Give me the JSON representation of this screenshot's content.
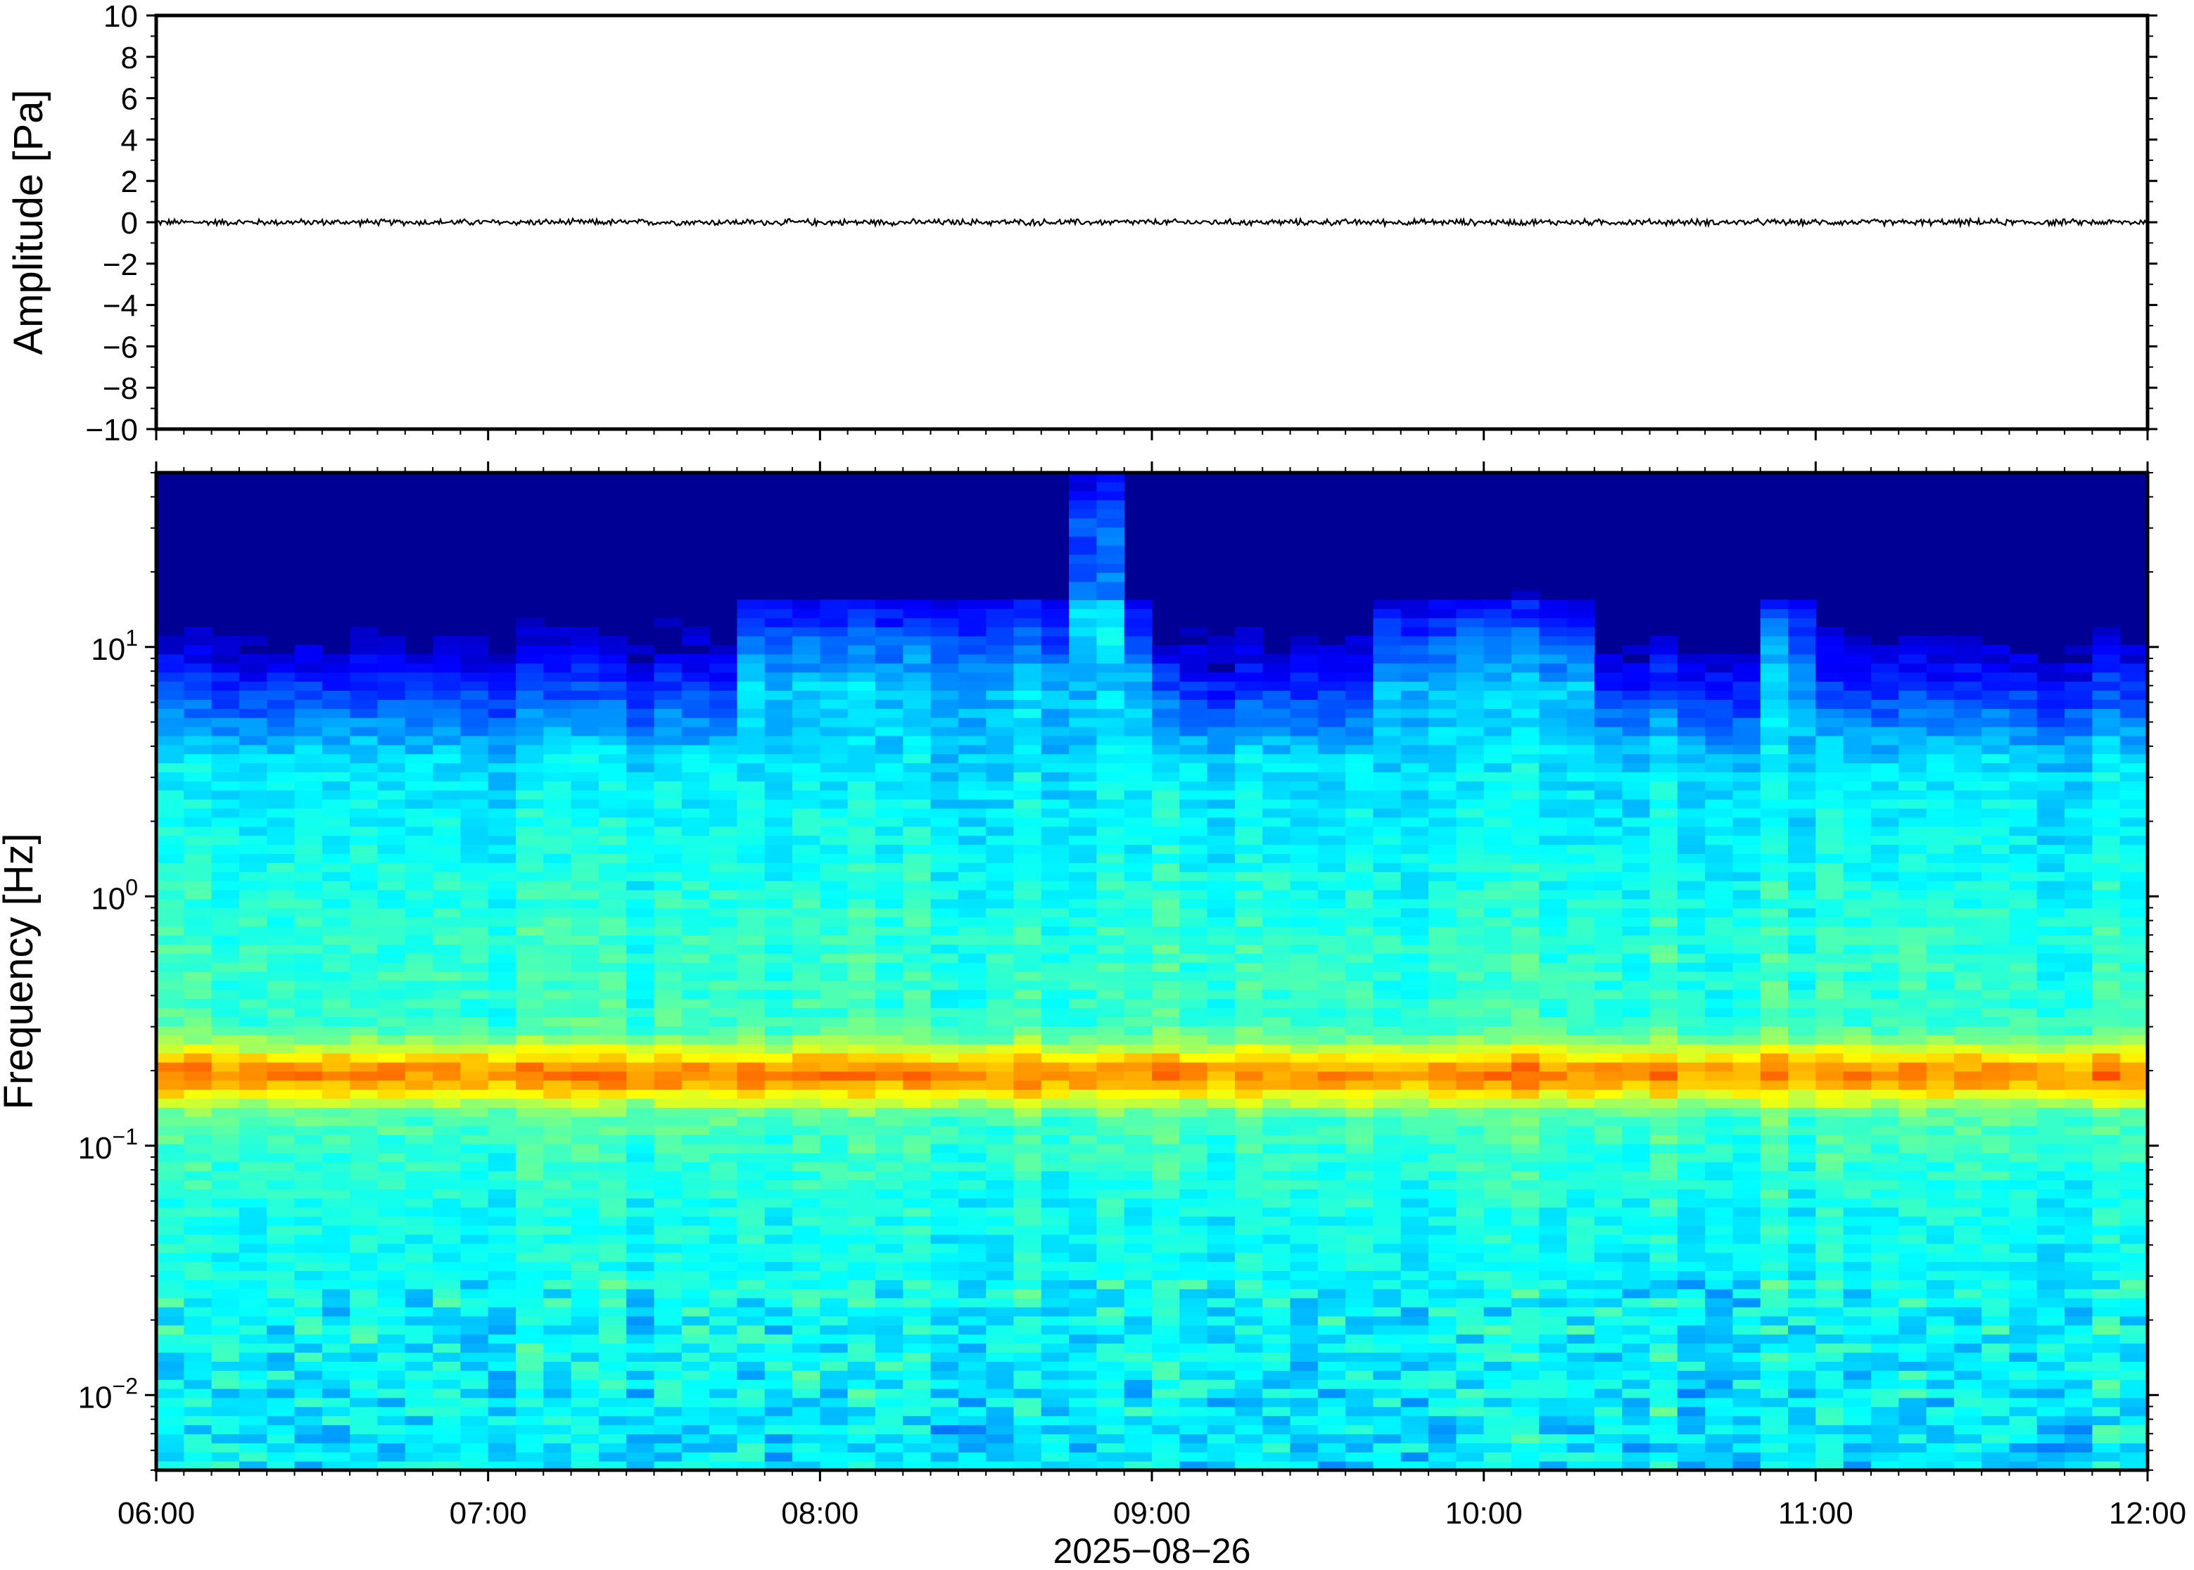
{
  "chart_data": [
    {
      "type": "line",
      "title": "",
      "ylabel": "Amplitude [Pa]",
      "ylim": [
        -10,
        10
      ],
      "yticks": [
        10,
        8,
        6,
        4,
        2,
        0,
        -2,
        -4,
        -6,
        -8,
        -10
      ],
      "ytick_labels": [
        "10",
        "8",
        "6",
        "4",
        "2",
        "0",
        "−2",
        "−4",
        "−6",
        "−8",
        "−10"
      ],
      "xlim": [
        "06:00",
        "12:00"
      ],
      "series": [
        {
          "color": "#000000",
          "x": [
            "06:00",
            "07:00",
            "08:00",
            "09:00",
            "10:00",
            "11:00",
            "12:00"
          ],
          "values": [
            0,
            0,
            0,
            0,
            0,
            0,
            0
          ],
          "noise_amplitude": 0.12
        }
      ],
      "grid": false
    },
    {
      "type": "heatmap",
      "title": "",
      "ylabel": "Frequency [Hz]",
      "yscale": "log",
      "ylim": [
        0.005,
        50
      ],
      "yticks": [
        10,
        1,
        0.1,
        0.01
      ],
      "ytick_labels": [
        {
          "base": "10",
          "exp": "1"
        },
        {
          "base": "10",
          "exp": "0"
        },
        {
          "base": "10",
          "exp": "−1"
        },
        {
          "base": "10",
          "exp": "−2"
        }
      ],
      "xlabel": "2025−08−26",
      "xticks": [
        "06:00",
        "07:00",
        "08:00",
        "09:00",
        "10:00",
        "11:00",
        "12:00"
      ],
      "colormap": "jet",
      "description": {
        "peak_band_hz": [
          0.15,
          0.25
        ],
        "low_energy_above_hz": 5,
        "bursts": [
          {
            "start": "07:45",
            "end": "09:00",
            "max_freq_hz": 10
          },
          {
            "start": "08:45",
            "end": "08:55",
            "max_freq_hz": 45
          },
          {
            "start": "09:40",
            "end": "10:20",
            "max_freq_hz": 10
          },
          {
            "start": "10:50",
            "end": "11:00",
            "max_freq_hz": 11
          }
        ]
      },
      "grid": false
    }
  ]
}
